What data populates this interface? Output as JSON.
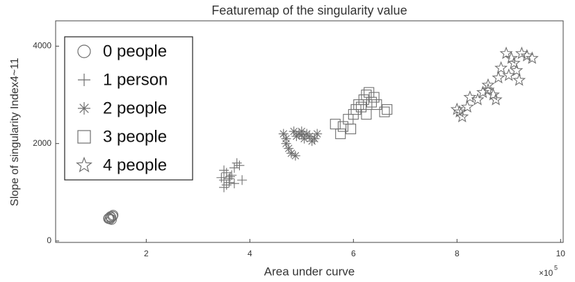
{
  "chart_data": {
    "type": "scatter",
    "title": "Featuremap of the singularity value",
    "x_label": "Area under curve",
    "y_label": "Slope of singularity Index4~11",
    "x_exponent_base": "×10",
    "x_exponent": "5",
    "xlim": [
      0.25,
      10.05
    ],
    "ylim": [
      -30,
      4520
    ],
    "xticks": [
      2,
      4,
      6,
      8,
      10
    ],
    "yticks": [
      0,
      2000,
      4000
    ],
    "legend": "upper left",
    "grid": false,
    "series": [
      {
        "name": "0 people",
        "color": "#6e6e6e",
        "marker": "circle",
        "x": [
          1.28,
          1.3,
          1.32,
          1.35,
          1.33,
          1.27,
          1.36,
          1.31
        ],
        "values": [
          470,
          450,
          480,
          510,
          440,
          460,
          530,
          500
        ]
      },
      {
        "name": "1 person",
        "color": "#6e6e6e",
        "marker": "plus",
        "x": [
          3.45,
          3.5,
          3.55,
          3.6,
          3.5,
          3.65,
          3.7,
          3.75,
          3.8,
          3.6,
          3.85,
          3.55,
          3.7,
          3.5,
          3.62
        ],
        "values": [
          1300,
          1250,
          1400,
          1200,
          1100,
          1350,
          1500,
          1600,
          1550,
          1280,
          1250,
          1150,
          1180,
          1450,
          1320
        ]
      },
      {
        "name": "2 people",
        "color": "#6e6e6e",
        "marker": "asterisk",
        "x": [
          4.65,
          4.7,
          4.75,
          4.8,
          4.85,
          4.9,
          4.95,
          5.0,
          5.05,
          5.1,
          5.15,
          5.2,
          5.25,
          5.3,
          4.7,
          4.88,
          5.0
        ],
        "values": [
          2200,
          2100,
          1900,
          1800,
          2250,
          2150,
          2200,
          2250,
          2100,
          2200,
          2150,
          2050,
          2100,
          2200,
          2000,
          1750,
          2180
        ]
      },
      {
        "name": "3 people",
        "color": "#6e6e6e",
        "marker": "square",
        "x": [
          5.65,
          5.75,
          5.8,
          5.9,
          5.95,
          6.0,
          6.05,
          6.1,
          6.15,
          6.2,
          6.25,
          6.3,
          6.35,
          6.45,
          6.6,
          6.65,
          6.4,
          6.25
        ],
        "values": [
          2400,
          2200,
          2350,
          2500,
          2300,
          2600,
          2700,
          2800,
          2750,
          2900,
          3000,
          3050,
          2850,
          2800,
          2650,
          2700,
          2950,
          2600
        ]
      },
      {
        "name": "4 people",
        "color": "#6e6e6e",
        "marker": "star",
        "x": [
          8.0,
          8.05,
          8.1,
          8.2,
          8.25,
          8.4,
          8.5,
          8.6,
          8.7,
          8.75,
          8.8,
          8.85,
          8.95,
          9.05,
          9.1,
          9.15,
          9.2,
          9.25,
          9.35,
          9.45,
          8.6,
          9.0
        ],
        "values": [
          2700,
          2650,
          2550,
          2750,
          2950,
          2900,
          3050,
          3200,
          3000,
          2900,
          3350,
          3550,
          3850,
          3750,
          3650,
          3500,
          3300,
          3850,
          3800,
          3750,
          3100,
          3400
        ]
      }
    ]
  }
}
